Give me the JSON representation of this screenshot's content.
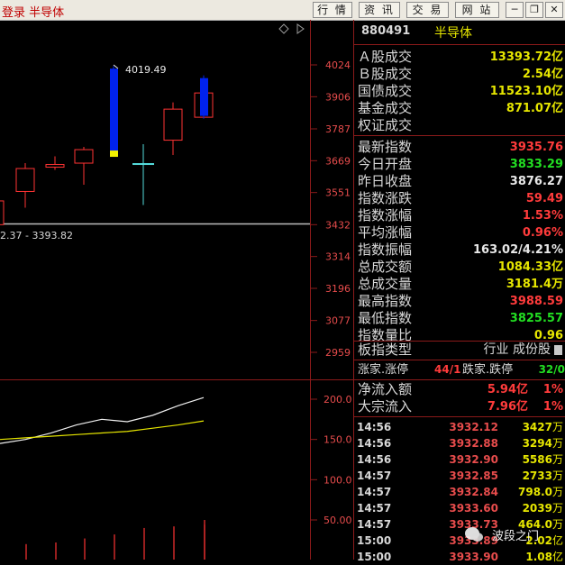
{
  "topbar": {
    "title": "登录 半导体",
    "buttons": [
      "行 情",
      "资 讯",
      "交 易",
      "网 站"
    ],
    "window_controls": [
      "minimize-icon",
      "restore-icon",
      "close-icon"
    ]
  },
  "chart": {
    "price_axis": [
      "4024",
      "3906",
      "3787",
      "3669",
      "3551",
      "3432",
      "3314",
      "3196",
      "3077",
      "2959"
    ],
    "volume_axis": [
      "200.0",
      "150.0",
      "100.0",
      "50.00"
    ],
    "high_annotation": "4019.49",
    "range_label": "2.37 - 3393.82",
    "colors": {
      "up": "#ff3333",
      "down_fill": "#0022ee",
      "cyan": "#55dddd",
      "yellow": "#f2f200",
      "grid": "#8b1a1a"
    },
    "candles": [
      {
        "open": 3432,
        "close": 3520,
        "high": 3530,
        "low": 3425,
        "color": "up"
      },
      {
        "open": 3555,
        "close": 3640,
        "high": 3660,
        "low": 3495,
        "color": "up"
      },
      {
        "open": 3645,
        "close": 3655,
        "high": 3685,
        "low": 3635,
        "color": "up"
      },
      {
        "open": 3660,
        "close": 3710,
        "high": 3720,
        "low": 3580,
        "color": "up"
      },
      {
        "open": 4010,
        "close": 3700,
        "high": 4019.49,
        "low": 3695,
        "color": "down"
      },
      {
        "open": 3660,
        "close": 3660,
        "high": 3730,
        "low": 3505,
        "color": "cyan"
      },
      {
        "open": 3745,
        "close": 3860,
        "high": 3885,
        "low": 3690,
        "color": "up"
      },
      {
        "open": 3830,
        "close": 3920,
        "high": 3935,
        "low": 3825,
        "color": "up"
      },
      {
        "open": 3975,
        "close": 3835,
        "high": 3985,
        "low": 3825,
        "color": "down"
      }
    ],
    "volume_bars": [
      18,
      20,
      22,
      27,
      32,
      40,
      42,
      44,
      50
    ],
    "ma_line_white": [
      145,
      150,
      158,
      168,
      175,
      172,
      180,
      192,
      202
    ],
    "ma_line_yellow": [
      150,
      152,
      154,
      156,
      158,
      160,
      164,
      168,
      173
    ]
  },
  "panel": {
    "code": "880491",
    "name": "半导体",
    "stats": [
      {
        "label": "Ａ股成交",
        "value": "13393.72亿",
        "color": "#e6e600"
      },
      {
        "label": "Ｂ股成交",
        "value": "2.54亿",
        "color": "#e6e600"
      },
      {
        "label": "国债成交",
        "value": "11523.10亿",
        "color": "#e6e600"
      },
      {
        "label": "基金成交",
        "value": "871.07亿",
        "color": "#e6e600"
      },
      {
        "label": "权证成交",
        "value": "",
        "color": "#e6e600"
      },
      {
        "label": "最新指数",
        "value": "3935.76",
        "color": "#ff3b3b"
      },
      {
        "label": "今日开盘",
        "value": "3833.29",
        "color": "#22dd22"
      },
      {
        "label": "昨日收盘",
        "value": "3876.27",
        "color": "#e8e8e8"
      },
      {
        "label": "指数涨跌",
        "value": "59.49",
        "color": "#ff3b3b"
      },
      {
        "label": "指数涨幅",
        "value": "1.53%",
        "color": "#ff3b3b"
      },
      {
        "label": "平均涨幅",
        "value": "0.96%",
        "color": "#ff3b3b"
      },
      {
        "label": "指数振幅",
        "value": "163.02/4.21%",
        "color": "#e8e8e8"
      },
      {
        "label": "总成交额",
        "value": "1084.33亿",
        "color": "#e6e600"
      },
      {
        "label": "总成交量",
        "value": "3181.4万",
        "color": "#e6e600"
      },
      {
        "label": "最高指数",
        "value": "3988.59",
        "color": "#ff3b3b"
      },
      {
        "label": "最低指数",
        "value": "3825.57",
        "color": "#22dd22"
      },
      {
        "label": "指数量比",
        "value": "0.96",
        "color": "#e6e600"
      }
    ],
    "board_type_label": "板指类型",
    "board_type_value": "行业 成份股",
    "updown_label1": "涨家.涨停",
    "updown_value1": "44/1",
    "updown_label2": "跌家.跌停",
    "updown_value2": "32/0",
    "flows": [
      {
        "label": "净流入额",
        "value": "5.94亿",
        "pct": "1%"
      },
      {
        "label": "大宗流入",
        "value": "7.96亿",
        "pct": "1%"
      }
    ],
    "ticks": [
      {
        "time": "14:56",
        "price": "3932.12",
        "vol": "3427",
        "unit": "万"
      },
      {
        "time": "14:56",
        "price": "3932.88",
        "vol": "3294",
        "unit": "万"
      },
      {
        "time": "14:56",
        "price": "3932.90",
        "vol": "5586",
        "unit": "万"
      },
      {
        "time": "14:57",
        "price": "3932.85",
        "vol": "2733",
        "unit": "万"
      },
      {
        "time": "14:57",
        "price": "3932.84",
        "vol": "798.0",
        "unit": "万"
      },
      {
        "time": "14:57",
        "price": "3933.60",
        "vol": "2039",
        "unit": "万"
      },
      {
        "time": "14:57",
        "price": "3933.73",
        "vol": "464.0",
        "unit": "万"
      },
      {
        "time": "15:00",
        "price": "3933.89",
        "vol": "2.02",
        "unit": "亿"
      },
      {
        "time": "15:00",
        "price": "3933.90",
        "vol": "1.08",
        "unit": "亿"
      }
    ]
  },
  "watermark": {
    "text": "波段之门"
  }
}
